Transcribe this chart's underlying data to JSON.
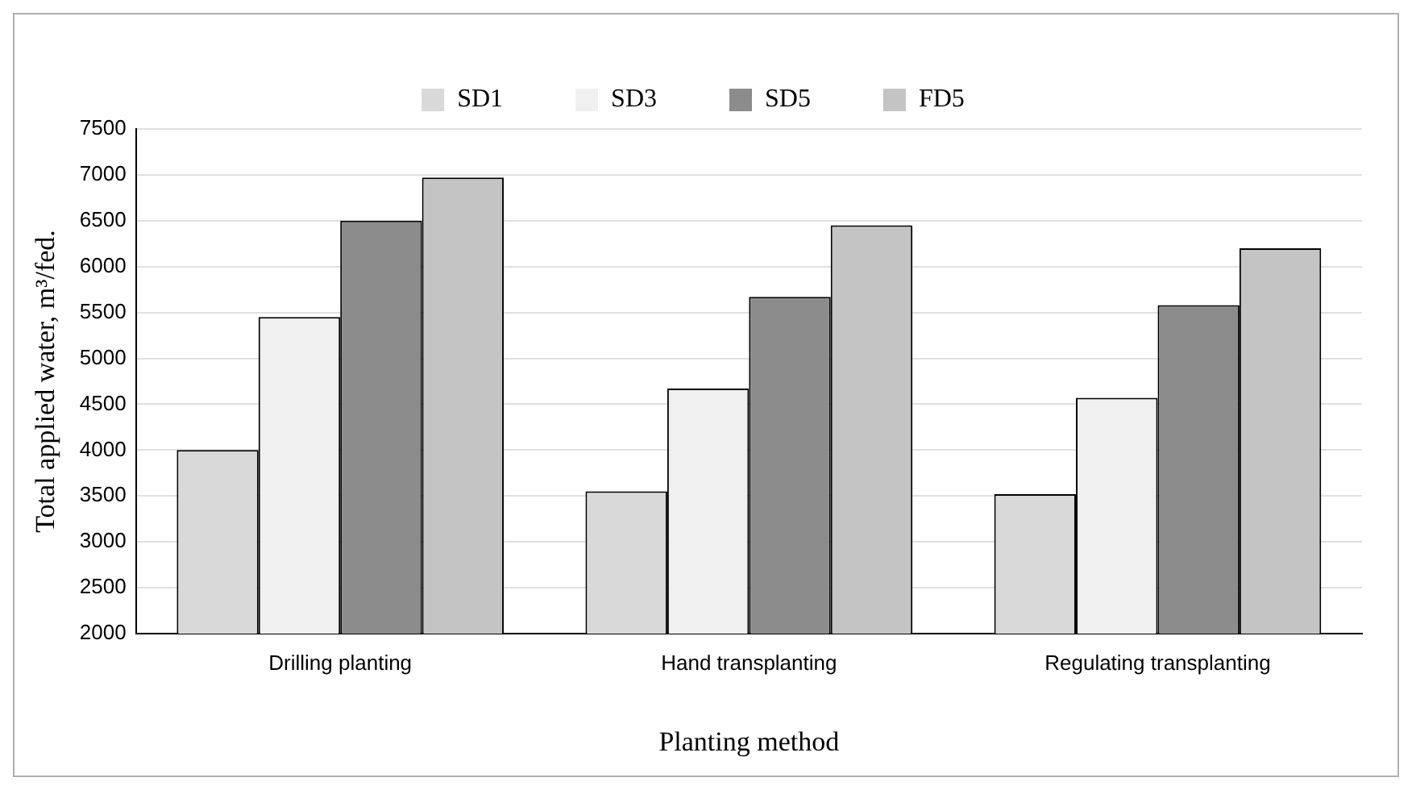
{
  "chart_data": {
    "type": "bar",
    "xlabel": "Planting method",
    "ylabel": "Total applied water, m³/fed.",
    "categories": [
      "Drilling planting",
      "Hand transplanting",
      "Regulating transplanting"
    ],
    "series": [
      {
        "name": "SD1",
        "color": "#d9d9d9",
        "values": [
          4000,
          3550,
          3520
        ]
      },
      {
        "name": "SD3",
        "color": "#f0f0f0",
        "values": [
          5450,
          4670,
          4570
        ]
      },
      {
        "name": "SD5",
        "color": "#8c8c8c",
        "values": [
          6500,
          5670,
          5580
        ]
      },
      {
        "name": "FD5",
        "color": "#c4c4c4",
        "values": [
          6970,
          6450,
          6200
        ]
      }
    ],
    "ylim": [
      2000,
      7500
    ],
    "yticks": [
      2000,
      2500,
      3000,
      3500,
      4000,
      4500,
      5000,
      5500,
      6000,
      6500,
      7000,
      7500
    ],
    "grid": "y",
    "legend": "top"
  }
}
